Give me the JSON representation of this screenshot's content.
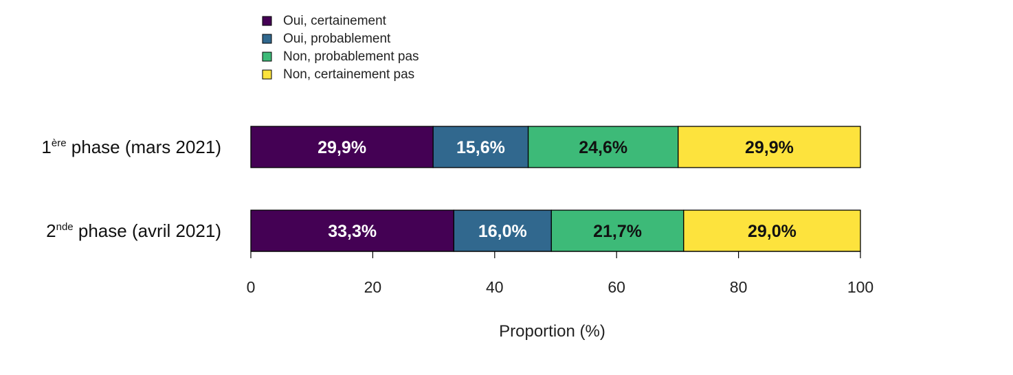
{
  "chart_data": {
    "type": "bar",
    "orientation": "horizontal",
    "stacked": true,
    "categories": [
      {
        "base": "1",
        "sup": "ère",
        "rest": " phase (mars 2021)"
      },
      {
        "base": "2",
        "sup": "nde",
        "rest": " phase (avril 2021)"
      }
    ],
    "series": [
      {
        "name": "Oui, certainement",
        "color": "#440154",
        "label_color": "#ffffff",
        "values": [
          29.9,
          33.3
        ],
        "labels": [
          "29,9%",
          "33,3%"
        ]
      },
      {
        "name": "Oui, probablement",
        "color": "#31688e",
        "label_color": "#ffffff",
        "values": [
          15.6,
          16.0
        ],
        "labels": [
          "15,6%",
          "16,0%"
        ]
      },
      {
        "name": "Non, probablement pas",
        "color": "#3dba78",
        "label_color": "#111111",
        "values": [
          24.6,
          21.7
        ],
        "labels": [
          "24,6%",
          "21,7%"
        ]
      },
      {
        "name": "Non, certainement pas",
        "color": "#fde33d",
        "label_color": "#111111",
        "values": [
          29.9,
          29.0
        ],
        "labels": [
          "29,9%",
          "29,0%"
        ]
      }
    ],
    "xlabel": "Proportion (%)",
    "xlim": [
      0,
      100
    ],
    "xticks": [
      0,
      20,
      40,
      60,
      80,
      100
    ],
    "xtick_labels": [
      "0",
      "20",
      "40",
      "60",
      "80",
      "100"
    ],
    "legend_position": "top-left",
    "grid": false
  }
}
